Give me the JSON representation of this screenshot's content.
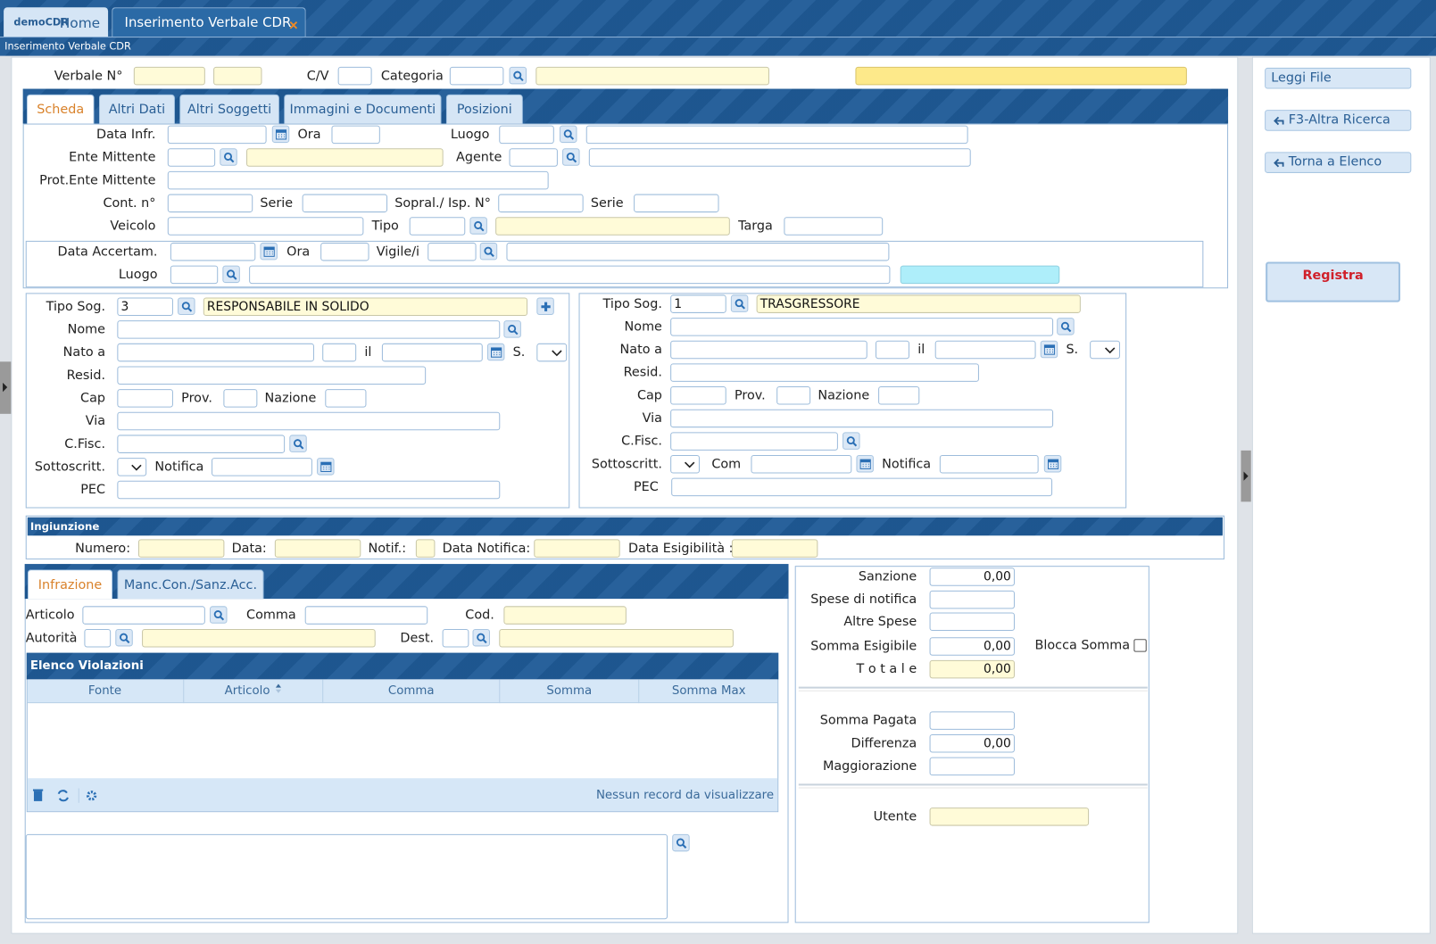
{
  "tabs": {
    "brand": "demoCDR",
    "home": "Home",
    "current": "Inserimento Verbale CDR"
  },
  "breadcrumb": "Inserimento Verbale CDR",
  "header": {
    "verbale": "Verbale N°",
    "cv": "C/V",
    "categoria": "Categoria"
  },
  "form_tabs": [
    "Scheda",
    "Altri Dati",
    "Altri Soggetti",
    "Immagini e Documenti",
    "Posizioni"
  ],
  "scheda": {
    "data_infr": "Data Infr.",
    "ora": "Ora",
    "luogo": "Luogo",
    "ente": "Ente Mittente",
    "agente": "Agente",
    "prot": "Prot.Ente Mittente",
    "cont": "Cont. n°",
    "serie": "Serie",
    "sopral": "Sopral./ Isp. N°",
    "serie2": "Serie",
    "veicolo": "Veicolo",
    "tipo": "Tipo",
    "targa": "Targa",
    "data_acc": "Data Accertam.",
    "ora_acc": "Ora",
    "vigile": "Vigile/i",
    "luogo_acc": "Luogo"
  },
  "soggetti": [
    {
      "tipo": "Tipo Sog.",
      "tipo_code": "3",
      "tipo_desc": "RESPONSABILE IN SOLIDO",
      "nome": "Nome",
      "nato": "Nato a",
      "il": "il",
      "sesso": "S.",
      "resid": "Resid.",
      "cap": "Cap",
      "prov": "Prov.",
      "nazione": "Nazione",
      "via": "Via",
      "cf": "C.Fisc.",
      "sottoscritt": "Sottoscritt.",
      "notifica": "Notifica",
      "pec": "PEC"
    },
    {
      "tipo": "Tipo Sog.",
      "tipo_code": "1",
      "tipo_desc": "TRASGRESSORE",
      "nome": "Nome",
      "nato": "Nato a",
      "il": "il",
      "sesso": "S.",
      "resid": "Resid.",
      "cap": "Cap",
      "prov": "Prov.",
      "nazione": "Nazione",
      "via": "Via",
      "cf": "C.Fisc.",
      "sottoscritt": "Sottoscritt.",
      "com": "Com",
      "notifica": "Notifica",
      "pec": "PEC"
    }
  ],
  "ingiunzione": {
    "title": "Ingiunzione",
    "numero": "Numero:",
    "data": "Data:",
    "notif": "Notif.:",
    "data_notifica": "Data Notifica:",
    "data_esigibilita": "Data Esigibilità :"
  },
  "infrazione_tabs": [
    "Infrazione",
    "Manc.Con./Sanz.Acc."
  ],
  "infrazione": {
    "articolo": "Articolo",
    "comma": "Comma",
    "cod": "Cod.",
    "autorita": "Autorità",
    "dest": "Dest."
  },
  "violazioni": {
    "title": "Elenco Violazioni",
    "columns": [
      "Fonte",
      "Articolo",
      "Comma",
      "Somma",
      "Somma Max"
    ],
    "empty": "Nessun record da visualizzare"
  },
  "importi": {
    "sanzione": "Sanzione",
    "sanzione_val": "0,00",
    "spese": "Spese di notifica",
    "altre": "Altre Spese",
    "esigibile": "Somma Esigibile",
    "esigibile_val": "0,00",
    "blocca": "Blocca Somma",
    "totale": "T o t a l e",
    "totale_val": "0,00",
    "pagata": "Somma Pagata",
    "differenza": "Differenza",
    "differenza_val": "0,00",
    "maggiorazione": "Maggiorazione",
    "utente": "Utente"
  },
  "actions": [
    "Leggi File",
    "F3-Altra Ricerca",
    "Torna a Elenco"
  ],
  "registra": "Registra"
}
